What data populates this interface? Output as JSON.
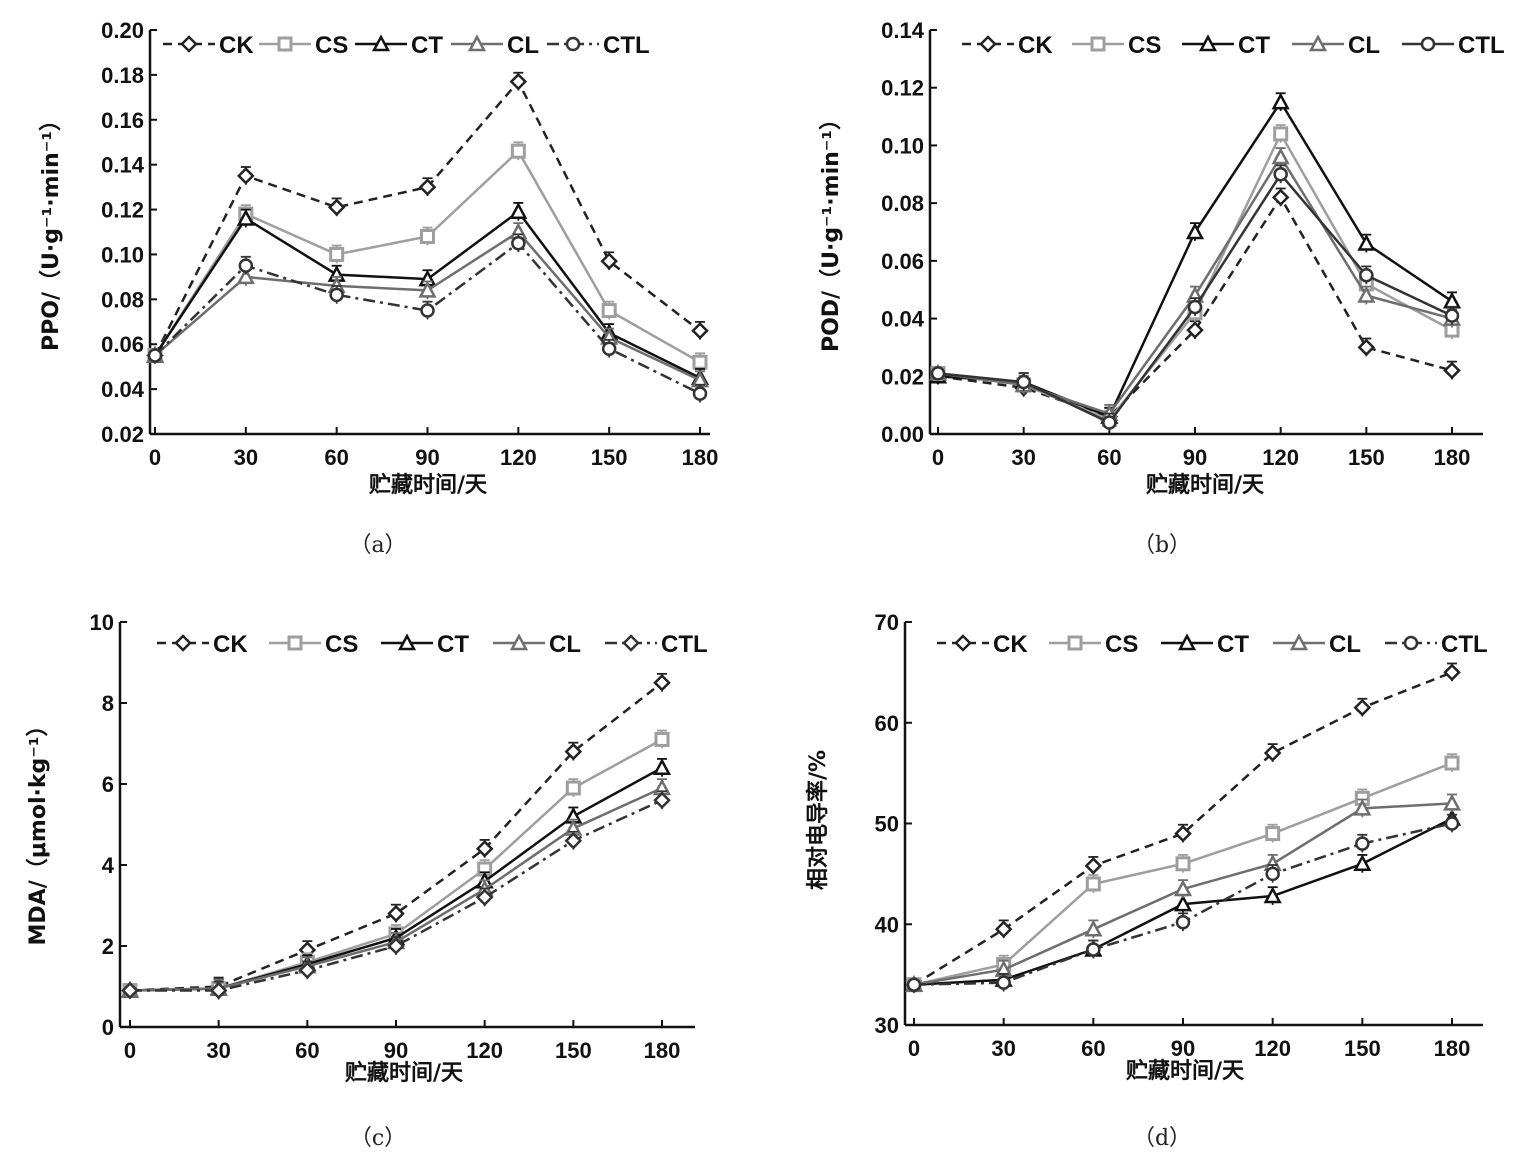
{
  "colors": {
    "CK": "#222222",
    "CS": "#9e9e9e",
    "CT": "#111111",
    "CL": "#6e6e6e",
    "CTL": "#333333"
  },
  "chart_data": [
    {
      "type": "line",
      "caption": "（a）",
      "ylabel": "PPO/（U·g⁻¹·min⁻¹）",
      "xlabel": "贮藏时间/天",
      "x": [
        0,
        30,
        60,
        90,
        120,
        150,
        180
      ],
      "xticks": [
        "0",
        "30",
        "60",
        "90",
        "120",
        "150",
        "180"
      ],
      "ylim": [
        0.02,
        0.2
      ],
      "yticks": [
        "0.02",
        "0.04",
        "0.06",
        "0.08",
        "0.10",
        "0.12",
        "0.14",
        "0.16",
        "0.18",
        "0.20"
      ],
      "series": [
        {
          "name": "CK",
          "marker": "diamond",
          "dash": "dashed",
          "values": [
            0.055,
            0.135,
            0.121,
            0.13,
            0.177,
            0.097,
            0.066
          ]
        },
        {
          "name": "CS",
          "marker": "square",
          "dash": "solid",
          "values": [
            0.055,
            0.118,
            0.1,
            0.108,
            0.146,
            0.075,
            0.052
          ]
        },
        {
          "name": "CT",
          "marker": "triangle",
          "dash": "solid",
          "values": [
            0.055,
            0.116,
            0.091,
            0.089,
            0.119,
            0.065,
            0.045
          ]
        },
        {
          "name": "CL",
          "marker": "triangle",
          "dash": "solid",
          "values": [
            0.055,
            0.09,
            0.086,
            0.084,
            0.11,
            0.063,
            0.044
          ]
        },
        {
          "name": "CTL",
          "marker": "circle",
          "dash": "dashdot",
          "values": [
            0.055,
            0.095,
            0.082,
            0.075,
            0.105,
            0.058,
            0.038
          ]
        }
      ]
    },
    {
      "type": "line",
      "caption": "（b）",
      "ylabel": "POD/（U·g⁻¹·min⁻¹）",
      "xlabel": "贮藏时间/天",
      "x": [
        0,
        30,
        60,
        90,
        120,
        150,
        180
      ],
      "xticks": [
        "0",
        "30",
        "60",
        "90",
        "120",
        "150",
        "180"
      ],
      "ylim": [
        0.0,
        0.14
      ],
      "yticks": [
        "0.00",
        "0.02",
        "0.04",
        "0.06",
        "0.08",
        "0.10",
        "0.12",
        "0.14"
      ],
      "series": [
        {
          "name": "CK",
          "marker": "diamond",
          "dash": "dashed",
          "values": [
            0.02,
            0.016,
            0.006,
            0.036,
            0.082,
            0.03,
            0.022
          ]
        },
        {
          "name": "CS",
          "marker": "square",
          "dash": "solid",
          "values": [
            0.021,
            0.017,
            0.005,
            0.042,
            0.104,
            0.052,
            0.036
          ]
        },
        {
          "name": "CT",
          "marker": "triangle",
          "dash": "solid",
          "values": [
            0.02,
            0.018,
            0.006,
            0.07,
            0.115,
            0.066,
            0.046
          ]
        },
        {
          "name": "CL",
          "marker": "triangle",
          "dash": "solid",
          "values": [
            0.021,
            0.017,
            0.007,
            0.048,
            0.096,
            0.048,
            0.04
          ]
        },
        {
          "name": "CTL",
          "marker": "circle",
          "dash": "solid",
          "values": [
            0.021,
            0.018,
            0.004,
            0.044,
            0.09,
            0.055,
            0.041
          ]
        }
      ]
    },
    {
      "type": "line",
      "caption": "（c）",
      "ylabel": "MDA/（μmol·kg⁻¹）",
      "xlabel": "贮藏时间/天",
      "x": [
        0,
        30,
        60,
        90,
        120,
        150,
        180
      ],
      "xticks": [
        "0",
        "30",
        "60",
        "90",
        "120",
        "150",
        "180"
      ],
      "ylim": [
        0,
        10
      ],
      "yticks": [
        "0",
        "2",
        "4",
        "6",
        "8",
        "10"
      ],
      "series": [
        {
          "name": "CK",
          "marker": "diamond",
          "dash": "dashed",
          "values": [
            0.9,
            1.0,
            1.9,
            2.8,
            4.4,
            6.8,
            8.5
          ]
        },
        {
          "name": "CS",
          "marker": "square",
          "dash": "solid",
          "values": [
            0.9,
            0.95,
            1.6,
            2.3,
            3.9,
            5.9,
            7.1
          ]
        },
        {
          "name": "CT",
          "marker": "triangle",
          "dash": "solid",
          "values": [
            0.9,
            0.95,
            1.55,
            2.2,
            3.6,
            5.2,
            6.4
          ]
        },
        {
          "name": "CL",
          "marker": "triangle",
          "dash": "solid",
          "values": [
            0.9,
            0.95,
            1.5,
            2.1,
            3.4,
            4.9,
            5.9
          ]
        },
        {
          "name": "CTL",
          "marker": "diamond",
          "dash": "dashdot",
          "values": [
            0.9,
            0.9,
            1.4,
            2.0,
            3.2,
            4.6,
            5.6
          ]
        }
      ]
    },
    {
      "type": "line",
      "caption": "（d）",
      "ylabel": "相对电导率/%",
      "xlabel": "贮藏时间/天",
      "x": [
        0,
        30,
        60,
        90,
        120,
        150,
        180
      ],
      "xticks": [
        "0",
        "30",
        "60",
        "90",
        "120",
        "150",
        "180"
      ],
      "ylim": [
        30,
        70
      ],
      "yticks": [
        "30",
        "40",
        "50",
        "60",
        "70"
      ],
      "series": [
        {
          "name": "CK",
          "marker": "diamond",
          "dash": "dashed",
          "values": [
            34,
            39.5,
            45.8,
            49,
            57,
            61.5,
            65
          ]
        },
        {
          "name": "CS",
          "marker": "square",
          "dash": "solid",
          "values": [
            34,
            36,
            44,
            46,
            49,
            52.5,
            56
          ]
        },
        {
          "name": "CT",
          "marker": "triangle",
          "dash": "solid",
          "values": [
            34,
            34.5,
            37.5,
            42,
            42.8,
            46,
            50.5
          ]
        },
        {
          "name": "CL",
          "marker": "triangle",
          "dash": "solid",
          "values": [
            34,
            35.5,
            39.5,
            43.5,
            46,
            51.5,
            52
          ]
        },
        {
          "name": "CTL",
          "marker": "circle",
          "dash": "dashdot",
          "values": [
            34,
            34.2,
            37.5,
            40.2,
            45,
            48,
            50
          ]
        }
      ]
    }
  ]
}
